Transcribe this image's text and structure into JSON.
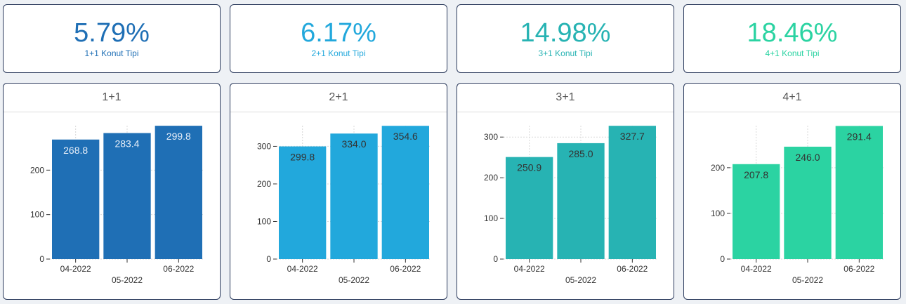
{
  "kpis": [
    {
      "value": "5.79%",
      "label": "1+1 Konut Tipi",
      "color": "#1f6fb5"
    },
    {
      "value": "6.17%",
      "label": "2+1 Konut Tipi",
      "color": "#22a8dc"
    },
    {
      "value": "14.98%",
      "label": "3+1 Konut Tipi",
      "color": "#27b3b3"
    },
    {
      "value": "18.46%",
      "label": "4+1 Konut Tipi",
      "color": "#2bd3a2"
    }
  ],
  "chart_data": [
    {
      "type": "bar",
      "title": "1+1",
      "categories": [
        "04-2022",
        "05-2022",
        "06-2022"
      ],
      "values": [
        268.8,
        283.4,
        299.8
      ],
      "value_labels": [
        "268.8",
        "283.4",
        "299.8"
      ],
      "yticks": [
        0,
        100,
        200
      ],
      "ytick_labels": [
        "0",
        "100",
        "200"
      ],
      "ylim": [
        0,
        300
      ],
      "color": "#1f6fb5",
      "label_color": "#e6eef8",
      "grid": true
    },
    {
      "type": "bar",
      "title": "2+1",
      "categories": [
        "04-2022",
        "05-2022",
        "06-2022"
      ],
      "values": [
        299.8,
        334.0,
        354.6
      ],
      "value_labels": [
        "299.8",
        "334.0",
        "354.6"
      ],
      "yticks": [
        0,
        100,
        200,
        300
      ],
      "ytick_labels": [
        "0",
        "100",
        "200",
        "300"
      ],
      "ylim": [
        0,
        355
      ],
      "color": "#22a8dc",
      "label_color": "#333333",
      "grid": true
    },
    {
      "type": "bar",
      "title": "3+1",
      "categories": [
        "04-2022",
        "05-2022",
        "06-2022"
      ],
      "values": [
        250.9,
        285.0,
        327.7
      ],
      "value_labels": [
        "250.9",
        "285.0",
        "327.7"
      ],
      "yticks": [
        0,
        100,
        200,
        300
      ],
      "ytick_labels": [
        "0",
        "100",
        "200",
        "300"
      ],
      "ylim": [
        0,
        328
      ],
      "color": "#27b3b3",
      "label_color": "#333333",
      "grid": true
    },
    {
      "type": "bar",
      "title": "4+1",
      "categories": [
        "04-2022",
        "05-2022",
        "06-2022"
      ],
      "values": [
        207.8,
        246.0,
        291.4
      ],
      "value_labels": [
        "207.8",
        "246.0",
        "291.4"
      ],
      "yticks": [
        0,
        100,
        200
      ],
      "ytick_labels": [
        "0",
        "100",
        "200"
      ],
      "ylim": [
        0,
        292
      ],
      "color": "#2bd3a2",
      "label_color": "#333333",
      "grid": true
    }
  ]
}
